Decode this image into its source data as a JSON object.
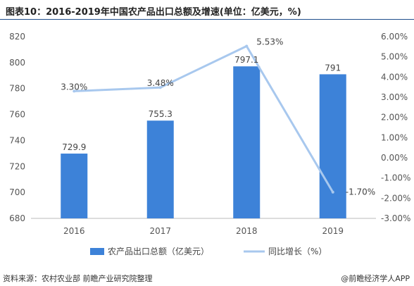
{
  "title": "图表10：2016-2019年中国农产品出口总额及增速(单位：亿美元，%)",
  "source": "资料来源：农村农业部 前瞻产业研究院整理",
  "brand": "@前瞻经济学人APP",
  "colors": {
    "bar": "#3d82d8",
    "line": "#a8c8ee"
  },
  "chart_data": {
    "type": "bar",
    "categories": [
      "2016",
      "2017",
      "2018",
      "2019"
    ],
    "series": [
      {
        "name": "农产品出口总额（亿美元）",
        "type": "bar",
        "axis": "left",
        "values": [
          729.9,
          755.3,
          797.1,
          791
        ],
        "labels": [
          "729.9",
          "755.3",
          "797.1",
          "791"
        ]
      },
      {
        "name": "同比增长（%）",
        "type": "line",
        "axis": "right",
        "values": [
          3.3,
          3.48,
          5.53,
          -1.7
        ],
        "labels": [
          "3.30%",
          "3.48%",
          "5.53%",
          "-1.70%"
        ]
      }
    ],
    "left_axis": {
      "ylim": [
        680,
        820
      ],
      "ticks": [
        "680",
        "700",
        "720",
        "740",
        "760",
        "780",
        "800",
        "820"
      ]
    },
    "right_axis": {
      "ylim": [
        -3,
        6
      ],
      "ticks": [
        "-3.00%",
        "-2.00%",
        "-1.00%",
        "0.00%",
        "1.00%",
        "2.00%",
        "3.00%",
        "4.00%",
        "5.00%",
        "6.00%"
      ]
    },
    "grid": false,
    "legend_position": "bottom"
  }
}
